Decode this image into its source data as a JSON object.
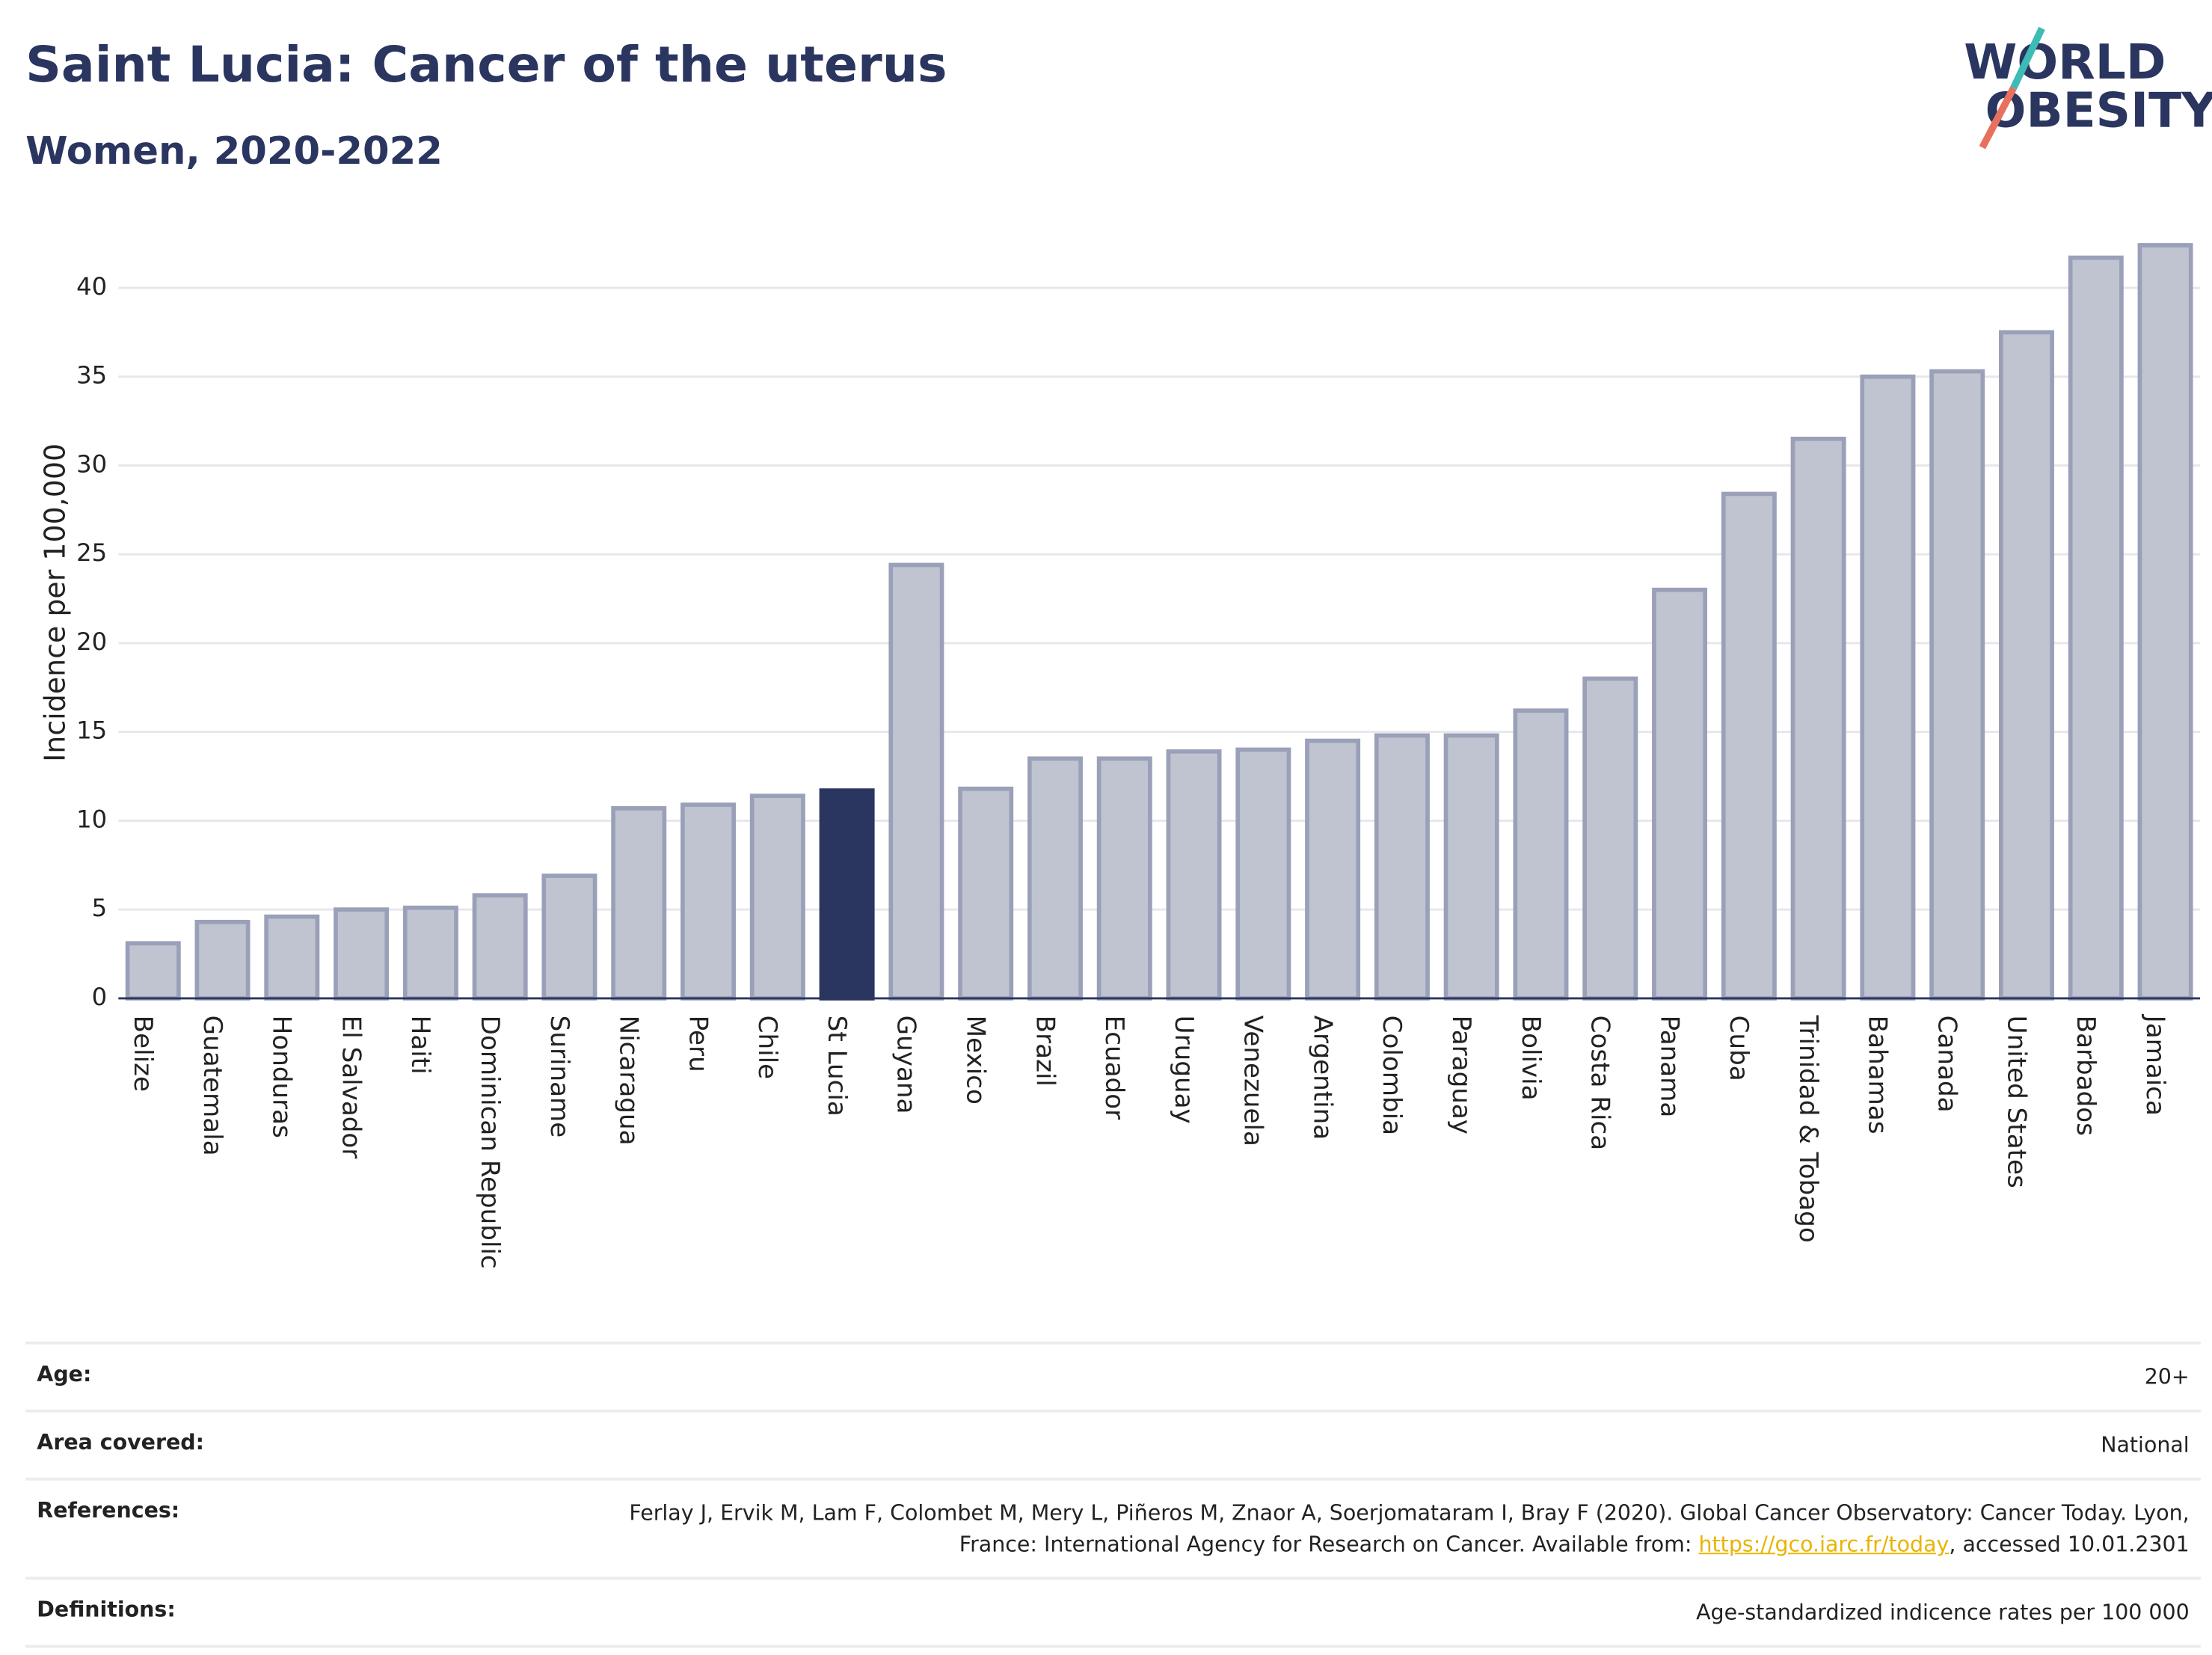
{
  "chart_data": {
    "type": "bar",
    "title": "Saint Lucia: Cancer of the uterus",
    "subtitle": "Women, 2020-2022",
    "y_label": "Incidence per 100,000",
    "logo": [
      "WORLD",
      "OBESITY"
    ],
    "categories": [
      "Belize",
      "Guatemala",
      "Honduras",
      "El Salvador",
      "Haiti",
      "Dominican Republic",
      "Suriname",
      "Nicaragua",
      "Peru",
      "Chile",
      "St Lucia",
      "Guyana",
      "Mexico",
      "Brazil",
      "Ecuador",
      "Uruguay",
      "Venezuela",
      "Argentina",
      "Colombia",
      "Paraguay",
      "Bolivia",
      "Costa Rica",
      "Panama",
      "Cuba",
      "Trinidad & Tobago",
      "Bahamas",
      "Canada",
      "United States",
      "Barbados",
      "Jamaica"
    ],
    "values": [
      3.1,
      4.3,
      4.6,
      5.0,
      5.1,
      5.8,
      6.9,
      10.7,
      10.9,
      11.4,
      11.7,
      24.4,
      11.8,
      13.5,
      13.5,
      13.9,
      14.0,
      14.5,
      14.8,
      14.8,
      16.2,
      18.0,
      23.0,
      28.4,
      31.5,
      35.0,
      35.3,
      37.5,
      41.7,
      42.4
    ],
    "color": "#c0c4d0",
    "highlight": "St Lucia",
    "highlight_color": "#2a3560",
    "ylim": [
      0,
      44
    ],
    "yticks": [
      0,
      5,
      10,
      15,
      20,
      25,
      30,
      35,
      40
    ],
    "grid": true
  },
  "details": [
    {
      "label": "Age:",
      "value": [
        "20+"
      ]
    },
    {
      "label": "Area covered:",
      "value": [
        "National"
      ]
    },
    {
      "label": "References:",
      "value": [
        "Ferlay J, Ervik M, Lam F, Colombet M, Mery L, Piñeros M, Znaor A, Soerjomataram I, Bray F (2020). Global Cancer Observatory: Cancer Today. Lyon, France: International Agency for Research on Cancer. Available from: ",
        "https://gco.iarc.fr/today",
        ", accessed 10.01.2301"
      ]
    },
    {
      "label": "Definitions:",
      "value": [
        "Age-standardized indicence rates per 100 000"
      ]
    }
  ]
}
